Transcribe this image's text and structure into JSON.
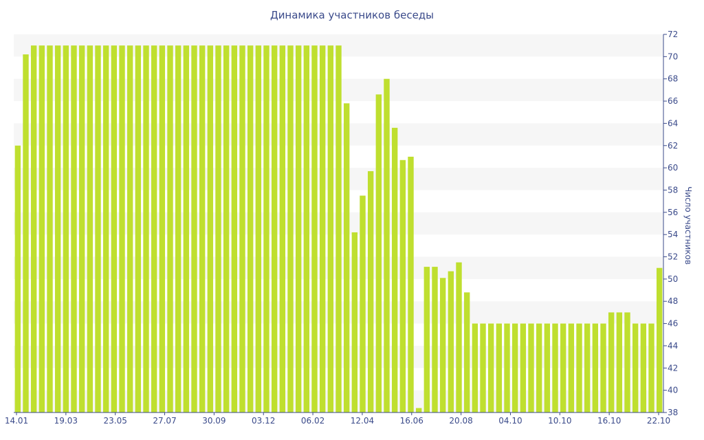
{
  "chart_data": {
    "type": "bar",
    "title": "Динамика участников беседы",
    "xlabel": "",
    "ylabel": "Число участников",
    "ylim": [
      38,
      72
    ],
    "y_ticks": [
      38,
      40,
      42,
      44,
      46,
      48,
      50,
      52,
      54,
      56,
      58,
      60,
      62,
      64,
      66,
      68,
      70,
      72
    ],
    "y_axis_side": "right",
    "x_tick_labels": [
      "14.01",
      "19.03",
      "23.05",
      "27.07",
      "30.09",
      "03.12",
      "06.02",
      "12.04",
      "16.06",
      "20.08",
      "04.10",
      "10.10",
      "16.10",
      "22.10"
    ],
    "grid": "alternating horizontal bands",
    "colors": {
      "bar": "#bfdf2f",
      "band": "#f6f6f6",
      "text": "#3a4a8a",
      "axis": "#3a4a8a"
    },
    "series": [
      {
        "name": "",
        "values": [
          62,
          70.2,
          71,
          71,
          71,
          71,
          71,
          71,
          71,
          71,
          71,
          71,
          71,
          71,
          71,
          71,
          71,
          71,
          71,
          71,
          71,
          71,
          71,
          71,
          71,
          71,
          71,
          71,
          71,
          71,
          71,
          71,
          71,
          71,
          71,
          71,
          71,
          71,
          71,
          71,
          71,
          65.8,
          54.2,
          57.5,
          59.7,
          66.6,
          68,
          63.6,
          60.7,
          61,
          38.4,
          51.1,
          51.1,
          50.1,
          50.7,
          51.5,
          48.8,
          46,
          46,
          46,
          46,
          46,
          46,
          46,
          46,
          46,
          46,
          46,
          46,
          46,
          46,
          46,
          46,
          46,
          47,
          47,
          47,
          46,
          46,
          46,
          51
        ]
      }
    ]
  }
}
